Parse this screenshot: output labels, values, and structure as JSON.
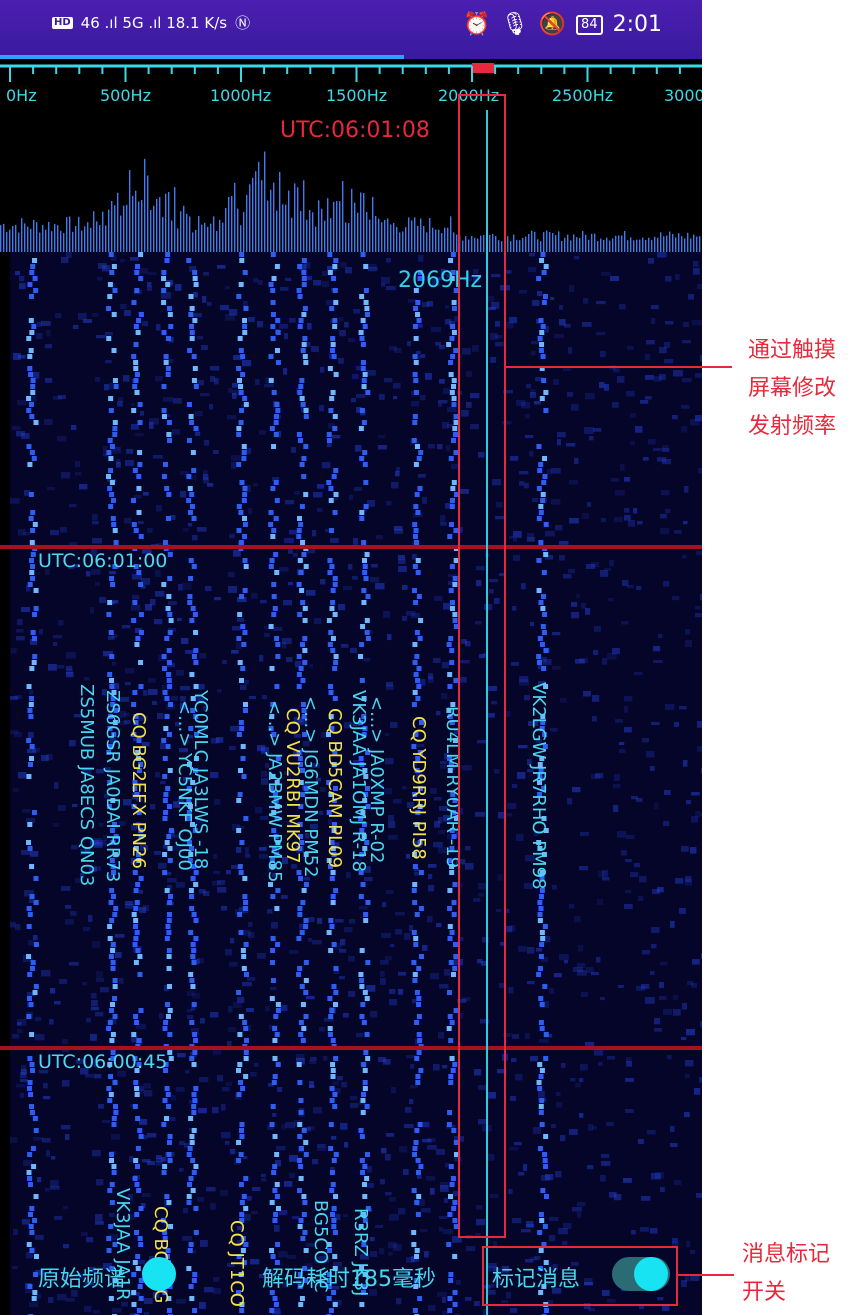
{
  "status_bar": {
    "left_text": "46 .ıl 5G .ıl 18.1 K/s",
    "time": "2:01",
    "battery": "84"
  },
  "ruler": {
    "labels": [
      "0Hz",
      "500Hz",
      "1000Hz",
      "1500Hz",
      "2000Hz",
      "2500Hz",
      "3000"
    ]
  },
  "utc_top": "UTC:06:01:08",
  "tx_freq_label": "2069Hz",
  "utc_markers": [
    "UTC:06:01:00",
    "UTC:06:00:45"
  ],
  "messages_block1": [
    {
      "text": "ZS5MUB JA8ECS QN03",
      "color": "cyan"
    },
    {
      "text": "ZS6GSR JA0DAI RR73",
      "color": "cyan"
    },
    {
      "text": "CQ BG2EFX PN26",
      "color": "yellow"
    },
    {
      "text": "YC0MLC JA3LWS -18",
      "color": "cyan"
    },
    {
      "text": "<...> YC5NKF OJ00",
      "color": "cyan"
    },
    {
      "text": "<...> JA2BMW PM85",
      "color": "cyan"
    },
    {
      "text": "<...> JG6MDN PM52",
      "color": "cyan"
    },
    {
      "text": "CQ VU2RBI MK97",
      "color": "yellow"
    },
    {
      "text": "CQ BD5CAM PL09",
      "color": "yellow"
    },
    {
      "text": "VK3JAA JA1OMJ R-18",
      "color": "cyan"
    },
    {
      "text": "<...> JA0XMP R-02",
      "color": "cyan"
    },
    {
      "text": "CQ YD9RRJ PI58",
      "color": "yellow"
    },
    {
      "text": "RU4LM RY0AR -19",
      "color": "cyan"
    },
    {
      "text": "VK2LGW JR7RHO PM98",
      "color": "cyan"
    }
  ],
  "messages_block2": [
    {
      "text": "VK3JAA JA1R",
      "color": "cyan"
    },
    {
      "text": "CQ BG3NG",
      "color": "yellow"
    },
    {
      "text": "CQ JT1CO",
      "color": "yellow"
    },
    {
      "text": "BG5CO YC",
      "color": "cyan"
    },
    {
      "text": "R3RZ JK3J",
      "color": "cyan"
    }
  ],
  "bottom_bar": {
    "raw_spectrum_label": "原始频谱",
    "decode_time_label": "解码耗时185毫秒",
    "mark_messages_label": "标记消息"
  },
  "annotations": {
    "touch_note": [
      "通过触摸",
      "屏幕修改",
      "发射频率"
    ],
    "toggle_note": [
      "消息标记",
      "开关"
    ]
  },
  "colors": {
    "accent_cyan": "#18e3f2",
    "annotation_red": "#e8283c",
    "status_purple": "#3b1aa0"
  }
}
